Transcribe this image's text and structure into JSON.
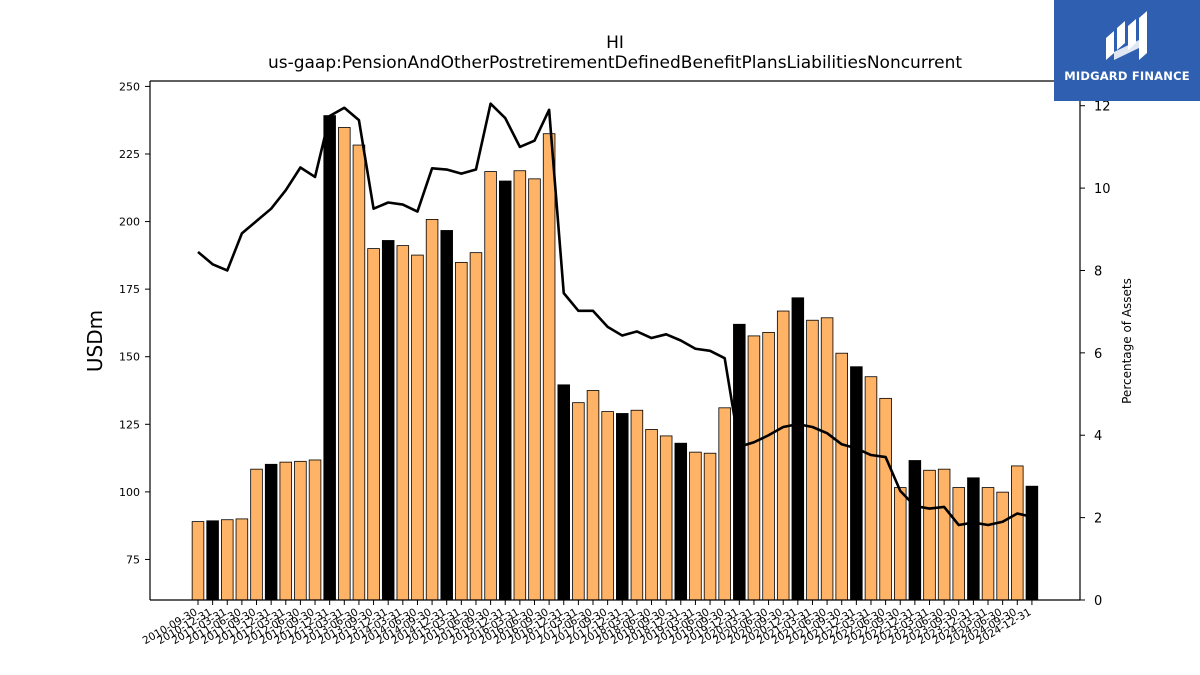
{
  "chart_data": {
    "type": "bar",
    "title": "HI",
    "subtitle": "us-gaap:PensionAndOtherPostretirementDefinedBenefitPlansLiabilitiesNoncurrent",
    "ylabel": "USDm",
    "y2label": "Percentage of Assets",
    "ylim": [
      60,
      252
    ],
    "y2lim": [
      0,
      12.6
    ],
    "yticks": [
      "75",
      "100",
      "125",
      "150",
      "175",
      "200",
      "225",
      "250"
    ],
    "y2ticks": [
      "0",
      "2",
      "4",
      "6",
      "8",
      "10",
      "12"
    ],
    "categories": [
      "2010-09-30",
      "2010-12-31",
      "2011-03-31",
      "2011-06-30",
      "2011-09-30",
      "2011-12-31",
      "2012-03-31",
      "2012-06-30",
      "2012-09-30",
      "2012-12-31",
      "2013-03-31",
      "2013-06-30",
      "2013-09-30",
      "2013-12-31",
      "2014-03-31",
      "2014-06-30",
      "2014-09-30",
      "2014-12-31",
      "2015-03-31",
      "2015-06-30",
      "2015-09-30",
      "2015-12-31",
      "2016-03-31",
      "2016-06-30",
      "2016-09-30",
      "2016-12-31",
      "2017-03-31",
      "2017-06-30",
      "2017-09-30",
      "2017-12-31",
      "2018-03-31",
      "2018-06-30",
      "2018-09-30",
      "2018-12-31",
      "2019-03-31",
      "2019-06-30",
      "2019-09-30",
      "2019-12-31",
      "2020-03-31",
      "2020-06-30",
      "2020-09-30",
      "2020-12-31",
      "2021-03-31",
      "2021-06-30",
      "2021-09-30",
      "2021-12-31",
      "2022-03-31",
      "2022-06-30",
      "2022-09-30",
      "2022-12-31",
      "2023-03-31",
      "2023-06-30",
      "2023-09-30",
      "2023-12-31",
      "2024-03-31",
      "2024-06-30",
      "2024-09-30",
      "2024-12-31"
    ],
    "series": [
      {
        "type": "bar",
        "values": [
          89.0,
          89.3,
          89.7,
          90.0,
          108.4,
          110.2,
          111.0,
          111.3,
          111.8,
          239.2,
          234.8,
          228.3,
          190.0,
          193.0,
          191.1,
          187.6,
          200.8,
          196.7,
          184.9,
          188.5,
          218.5,
          215.0,
          218.8,
          215.8,
          232.5,
          139.6,
          133.0,
          137.5,
          129.7,
          129.0,
          130.2,
          123.1,
          120.7,
          118.0,
          114.7,
          114.3,
          131.1,
          162.0,
          157.7,
          159.0,
          166.9,
          171.8,
          163.5,
          164.4,
          151.3,
          146.3,
          142.6,
          134.6,
          101.6,
          111.6,
          108.0,
          108.4,
          101.6,
          105.2,
          101.6,
          99.9,
          109.6,
          102.1
        ],
        "highlight": [
          false,
          true,
          false,
          false,
          false,
          true,
          false,
          false,
          false,
          true,
          false,
          false,
          false,
          true,
          false,
          false,
          false,
          true,
          false,
          false,
          false,
          true,
          false,
          false,
          false,
          true,
          false,
          false,
          false,
          true,
          false,
          false,
          false,
          true,
          false,
          false,
          false,
          true,
          false,
          false,
          false,
          true,
          false,
          false,
          false,
          true,
          false,
          false,
          false,
          true,
          false,
          false,
          false,
          true,
          false,
          false,
          false,
          true
        ]
      },
      {
        "type": "line",
        "axis": "right",
        "values": [
          8.45,
          8.15,
          8.0,
          8.9,
          9.2,
          9.5,
          9.95,
          10.5,
          10.27,
          11.75,
          11.95,
          11.65,
          9.5,
          9.65,
          9.6,
          9.43,
          10.48,
          10.45,
          10.35,
          10.45,
          12.05,
          11.7,
          11.0,
          11.15,
          11.9,
          7.45,
          7.02,
          7.02,
          6.63,
          6.42,
          6.52,
          6.36,
          6.45,
          6.3,
          6.1,
          6.05,
          5.87,
          3.72,
          3.83,
          4.0,
          4.2,
          4.27,
          4.2,
          4.05,
          3.78,
          3.68,
          3.52,
          3.47,
          2.65,
          2.28,
          2.22,
          2.26,
          1.82,
          1.88,
          1.82,
          1.9,
          2.1,
          2.02
        ]
      }
    ],
    "colors": {
      "bar": "#ffb366",
      "bar_highlight": "#000000",
      "line": "#000000"
    }
  },
  "logo": {
    "text": "MIDGARD FINANCE"
  }
}
